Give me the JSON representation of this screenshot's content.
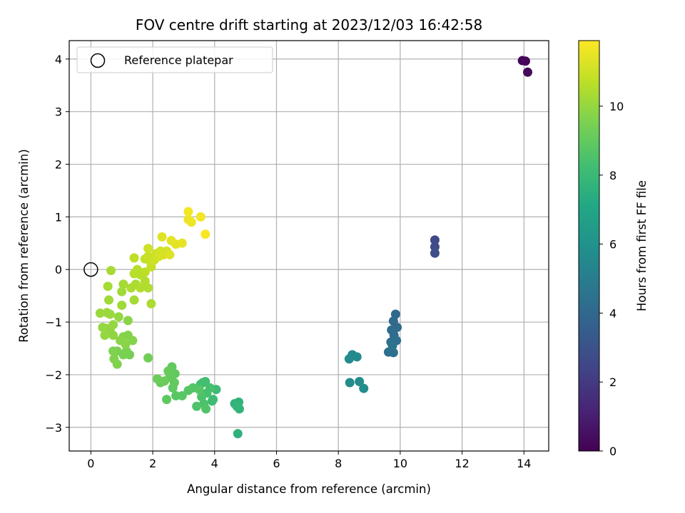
{
  "chart_data": {
    "type": "scatter",
    "title": "FOV centre drift starting at 2023/12/03 16:42:58",
    "xlabel": "Angular distance from reference (arcmin)",
    "ylabel": "Rotation from reference (arcmin)",
    "xlim": [
      -0.7,
      14.8
    ],
    "ylim": [
      -3.45,
      4.35
    ],
    "xticks": [
      0,
      2,
      4,
      6,
      8,
      10,
      12,
      14
    ],
    "yticks": [
      -3,
      -2,
      -1,
      0,
      1,
      2,
      3,
      4
    ],
    "grid": true,
    "legend": {
      "placement": "top-left",
      "entries": [
        "Reference platepar"
      ]
    },
    "reference_point": {
      "x": 0,
      "y": 0
    },
    "colorbar": {
      "label": "Hours from first FF file",
      "colormap": "viridis",
      "range": [
        0,
        11.9
      ],
      "ticks": [
        0,
        2,
        4,
        6,
        8,
        10
      ]
    },
    "series": [
      {
        "points": [
          {
            "x": 13.95,
            "y": 3.97,
            "c": 0.1
          },
          {
            "x": 14.05,
            "y": 3.96,
            "c": 0.2
          },
          {
            "x": 14.12,
            "y": 3.75,
            "c": 0.3
          },
          {
            "x": 11.12,
            "y": 0.56,
            "c": 2.6
          },
          {
            "x": 11.12,
            "y": 0.43,
            "c": 2.7
          },
          {
            "x": 11.12,
            "y": 0.31,
            "c": 2.8
          },
          {
            "x": 9.85,
            "y": -0.85,
            "c": 4.0
          },
          {
            "x": 9.78,
            "y": -0.98,
            "c": 4.1
          },
          {
            "x": 9.9,
            "y": -1.1,
            "c": 4.1
          },
          {
            "x": 9.72,
            "y": -1.15,
            "c": 4.2
          },
          {
            "x": 9.8,
            "y": -1.25,
            "c": 4.2
          },
          {
            "x": 9.7,
            "y": -1.38,
            "c": 4.3
          },
          {
            "x": 9.88,
            "y": -1.35,
            "c": 4.3
          },
          {
            "x": 9.62,
            "y": -1.57,
            "c": 4.4
          },
          {
            "x": 9.78,
            "y": -1.58,
            "c": 4.4
          },
          {
            "x": 9.75,
            "y": -1.45,
            "c": 4.5
          },
          {
            "x": 8.45,
            "y": -1.62,
            "c": 5.5
          },
          {
            "x": 8.35,
            "y": -1.7,
            "c": 5.6
          },
          {
            "x": 8.6,
            "y": -1.66,
            "c": 5.6
          },
          {
            "x": 8.37,
            "y": -2.15,
            "c": 5.7
          },
          {
            "x": 8.68,
            "y": -2.13,
            "c": 5.7
          },
          {
            "x": 8.82,
            "y": -2.26,
            "c": 5.8
          },
          {
            "x": 4.75,
            "y": -3.12,
            "c": 7.6
          },
          {
            "x": 4.65,
            "y": -2.55,
            "c": 7.7
          },
          {
            "x": 4.78,
            "y": -2.52,
            "c": 7.7
          },
          {
            "x": 4.8,
            "y": -2.65,
            "c": 7.7
          },
          {
            "x": 4.72,
            "y": -2.6,
            "c": 7.8
          },
          {
            "x": 3.95,
            "y": -2.47,
            "c": 8.1
          },
          {
            "x": 4.05,
            "y": -2.28,
            "c": 8.1
          },
          {
            "x": 3.92,
            "y": -2.5,
            "c": 8.2
          },
          {
            "x": 3.62,
            "y": -2.15,
            "c": 8.2
          },
          {
            "x": 3.7,
            "y": -2.13,
            "c": 8.3
          },
          {
            "x": 3.55,
            "y": -2.18,
            "c": 8.3
          },
          {
            "x": 3.85,
            "y": -2.25,
            "c": 8.4
          },
          {
            "x": 3.75,
            "y": -2.35,
            "c": 8.4
          },
          {
            "x": 3.58,
            "y": -2.42,
            "c": 8.5
          },
          {
            "x": 3.65,
            "y": -2.55,
            "c": 8.5
          },
          {
            "x": 3.42,
            "y": -2.6,
            "c": 8.6
          },
          {
            "x": 3.72,
            "y": -2.65,
            "c": 8.6
          },
          {
            "x": 3.3,
            "y": -2.25,
            "c": 8.7
          },
          {
            "x": 3.15,
            "y": -2.3,
            "c": 8.7
          },
          {
            "x": 3.5,
            "y": -2.28,
            "c": 8.7
          },
          {
            "x": 2.95,
            "y": -2.4,
            "c": 8.8
          },
          {
            "x": 2.75,
            "y": -2.4,
            "c": 8.8
          },
          {
            "x": 2.45,
            "y": -2.47,
            "c": 8.9
          },
          {
            "x": 2.65,
            "y": -2.25,
            "c": 8.9
          },
          {
            "x": 2.7,
            "y": -2.15,
            "c": 9.0
          },
          {
            "x": 2.55,
            "y": -2.05,
            "c": 9.0
          },
          {
            "x": 2.62,
            "y": -1.85,
            "c": 9.0
          },
          {
            "x": 2.72,
            "y": -1.98,
            "c": 9.0
          },
          {
            "x": 2.5,
            "y": -1.93,
            "c": 9.1
          },
          {
            "x": 2.25,
            "y": -2.15,
            "c": 9.1
          },
          {
            "x": 2.15,
            "y": -2.08,
            "c": 9.2
          },
          {
            "x": 2.38,
            "y": -2.12,
            "c": 9.2
          },
          {
            "x": 1.85,
            "y": -1.68,
            "c": 9.3
          },
          {
            "x": 1.25,
            "y": -1.62,
            "c": 9.4
          },
          {
            "x": 1.05,
            "y": -1.62,
            "c": 9.5
          },
          {
            "x": 1.15,
            "y": -1.55,
            "c": 9.5
          },
          {
            "x": 0.85,
            "y": -1.55,
            "c": 9.5
          },
          {
            "x": 0.75,
            "y": -1.7,
            "c": 9.6
          },
          {
            "x": 0.85,
            "y": -1.8,
            "c": 9.6
          },
          {
            "x": 0.72,
            "y": -1.55,
            "c": 9.6
          },
          {
            "x": 1.35,
            "y": -1.35,
            "c": 9.7
          },
          {
            "x": 1.2,
            "y": -1.25,
            "c": 9.7
          },
          {
            "x": 1.05,
            "y": -1.28,
            "c": 9.7
          },
          {
            "x": 0.95,
            "y": -1.35,
            "c": 9.8
          },
          {
            "x": 1.12,
            "y": -1.42,
            "c": 9.8
          },
          {
            "x": 1.2,
            "y": -0.97,
            "c": 9.8
          },
          {
            "x": 0.72,
            "y": -1.25,
            "c": 9.9
          },
          {
            "x": 0.62,
            "y": -1.15,
            "c": 9.9
          },
          {
            "x": 0.5,
            "y": -1.12,
            "c": 9.9
          },
          {
            "x": 0.45,
            "y": -1.25,
            "c": 10.0
          },
          {
            "x": 0.38,
            "y": -1.1,
            "c": 10.0
          },
          {
            "x": 0.72,
            "y": -1.05,
            "c": 10.0
          },
          {
            "x": 0.9,
            "y": -0.9,
            "c": 10.0
          },
          {
            "x": 0.62,
            "y": -0.85,
            "c": 10.1
          },
          {
            "x": 0.52,
            "y": -0.82,
            "c": 10.1
          },
          {
            "x": 0.3,
            "y": -0.83,
            "c": 10.1
          },
          {
            "x": 0.58,
            "y": -0.58,
            "c": 10.2
          },
          {
            "x": 1.0,
            "y": -0.68,
            "c": 10.2
          },
          {
            "x": 1.0,
            "y": -0.42,
            "c": 10.2
          },
          {
            "x": 0.55,
            "y": -0.32,
            "c": 10.3
          },
          {
            "x": 1.05,
            "y": -0.28,
            "c": 10.3
          },
          {
            "x": 1.4,
            "y": -0.58,
            "c": 10.3
          },
          {
            "x": 0.65,
            "y": -0.02,
            "c": 10.3
          },
          {
            "x": 1.95,
            "y": -0.65,
            "c": 10.4
          },
          {
            "x": 1.3,
            "y": -0.35,
            "c": 10.4
          },
          {
            "x": 1.45,
            "y": -0.28,
            "c": 10.4
          },
          {
            "x": 1.85,
            "y": -0.35,
            "c": 10.5
          },
          {
            "x": 1.6,
            "y": -0.35,
            "c": 10.5
          },
          {
            "x": 1.75,
            "y": -0.22,
            "c": 10.5
          },
          {
            "x": 1.4,
            "y": -0.08,
            "c": 10.6
          },
          {
            "x": 1.5,
            "y": 0.0,
            "c": 10.6
          },
          {
            "x": 1.6,
            "y": -0.1,
            "c": 10.6
          },
          {
            "x": 1.75,
            "y": -0.05,
            "c": 10.7
          },
          {
            "x": 1.4,
            "y": 0.22,
            "c": 10.7
          },
          {
            "x": 1.95,
            "y": 0.05,
            "c": 10.8
          },
          {
            "x": 1.75,
            "y": 0.2,
            "c": 10.8
          },
          {
            "x": 1.95,
            "y": 0.12,
            "c": 10.9
          },
          {
            "x": 1.85,
            "y": 0.25,
            "c": 10.9
          },
          {
            "x": 2.05,
            "y": 0.18,
            "c": 11.0
          },
          {
            "x": 2.1,
            "y": 0.3,
            "c": 11.0
          },
          {
            "x": 1.85,
            "y": 0.4,
            "c": 11.0
          },
          {
            "x": 2.2,
            "y": 0.25,
            "c": 11.1
          },
          {
            "x": 2.25,
            "y": 0.35,
            "c": 11.1
          },
          {
            "x": 2.35,
            "y": 0.28,
            "c": 11.2
          },
          {
            "x": 2.45,
            "y": 0.35,
            "c": 11.2
          },
          {
            "x": 2.55,
            "y": 0.28,
            "c": 11.3
          },
          {
            "x": 2.3,
            "y": 0.62,
            "c": 11.3
          },
          {
            "x": 2.6,
            "y": 0.55,
            "c": 11.4
          },
          {
            "x": 2.75,
            "y": 0.48,
            "c": 11.4
          },
          {
            "x": 2.95,
            "y": 0.5,
            "c": 11.5
          },
          {
            "x": 3.15,
            "y": 0.95,
            "c": 11.6
          },
          {
            "x": 3.25,
            "y": 0.9,
            "c": 11.6
          },
          {
            "x": 3.15,
            "y": 1.1,
            "c": 11.7
          },
          {
            "x": 3.55,
            "y": 1.0,
            "c": 11.7
          },
          {
            "x": 3.7,
            "y": 0.67,
            "c": 11.8
          }
        ]
      }
    ]
  }
}
